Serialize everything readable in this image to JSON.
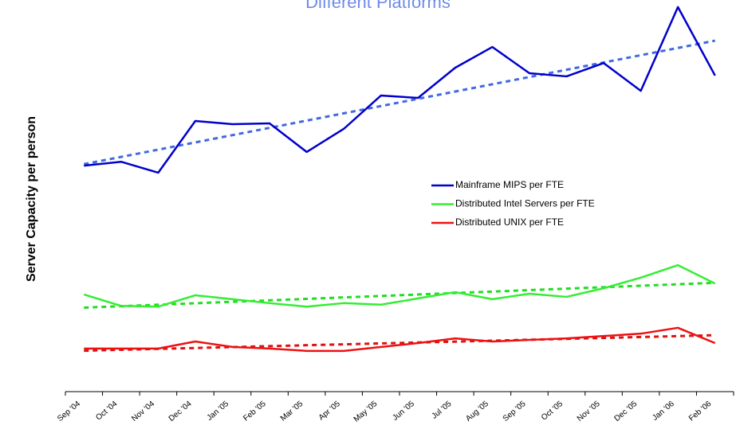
{
  "chart_data": {
    "type": "line",
    "title": "Different Platforms",
    "y_label": "Server Capacity per person",
    "categories": [
      "Sep '04",
      "Oct '04",
      "Nov '04",
      "Dec '04",
      "Jan '05",
      "Feb '05",
      "Mar '05",
      "Apr '05",
      "May '05",
      "Jun '05",
      "Jul '05",
      "Aug '05",
      "Sep '05",
      "Oct '05",
      "Nov '05",
      "Dec '05",
      "Jan '06",
      "Feb '06"
    ],
    "series": [
      {
        "name": "Mainframe MIPS per FTE",
        "color": "#0000cc",
        "trend_color": "#4169e1",
        "values": [
          57.7,
          58.7,
          55.9,
          69.1,
          68.3,
          68.5,
          61.2,
          67.1,
          75.6,
          75.0,
          82.7,
          88.0,
          81.3,
          80.5,
          83.9,
          76.8,
          98.2,
          80.7
        ]
      },
      {
        "name": "Distributed Intel Servers per FTE",
        "color": "#33ee33",
        "trend_color": "#22dd22",
        "values": [
          24.8,
          21.9,
          21.7,
          24.6,
          23.6,
          22.6,
          21.7,
          22.6,
          22.2,
          23.8,
          25.4,
          23.6,
          25.0,
          24.2,
          26.4,
          29.1,
          32.3,
          27.6
        ]
      },
      {
        "name": "Distributed UNIX per FTE",
        "color": "#ee1111",
        "trend_color": "#dd1111",
        "values": [
          11.0,
          11.0,
          11.0,
          12.8,
          11.4,
          11.0,
          10.4,
          10.4,
          11.4,
          12.4,
          13.6,
          12.8,
          13.2,
          13.6,
          14.2,
          14.8,
          16.3,
          12.4
        ]
      }
    ],
    "ylim": [
      0,
      100
    ],
    "trendline": true
  }
}
